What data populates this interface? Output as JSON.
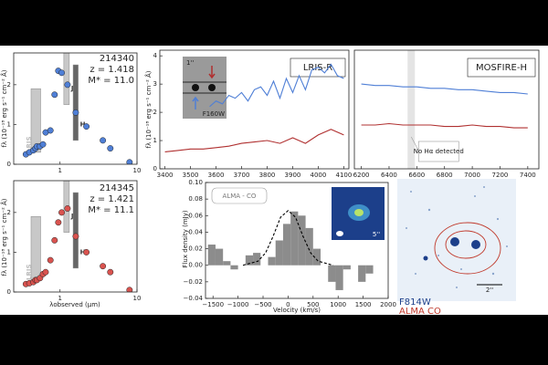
{
  "chart_data": [
    {
      "type": "scatter",
      "texts": [
        "214340",
        "z = 1.418",
        "M* = 11.0"
      ],
      "ylabel": "fλ (10⁻¹⁸ erg s⁻¹ cm⁻² Å)",
      "xscale": "log",
      "xlim": [
        0.25,
        10
      ],
      "xticks": [
        1,
        10
      ],
      "ylim": [
        0,
        2.8
      ],
      "yticks": [
        0,
        1,
        2
      ],
      "color": "#4f7fd6",
      "bands": [
        {
          "name": "LRIS",
          "xrange": [
            0.42,
            0.56
          ]
        },
        {
          "name": "J",
          "xrange": [
            1.12,
            1.32
          ]
        },
        {
          "name": "H",
          "xrange": [
            1.48,
            1.72
          ]
        }
      ],
      "x": [
        0.36,
        0.4,
        0.45,
        0.48,
        0.5,
        0.55,
        0.6,
        0.65,
        0.75,
        0.85,
        0.95,
        1.05,
        1.25,
        1.6,
        2.2,
        3.6,
        4.5,
        8
      ],
      "values": [
        0.25,
        0.3,
        0.35,
        0.4,
        0.45,
        0.45,
        0.5,
        0.8,
        0.85,
        1.75,
        2.35,
        2.3,
        2.0,
        1.3,
        0.95,
        0.6,
        0.4,
        0.05
      ]
    },
    {
      "type": "scatter",
      "texts": [
        "214345",
        "z = 1.421",
        "M* = 11.1"
      ],
      "ylabel": "fλ (10⁻¹⁸ erg s⁻¹ cm⁻² Å)",
      "xlabel": "λobserved (μm)",
      "xscale": "log",
      "xlim": [
        0.25,
        10
      ],
      "xticks": [
        1,
        10
      ],
      "ylim": [
        0,
        2.8
      ],
      "yticks": [
        0,
        1,
        2
      ],
      "color": "#d9534f",
      "bands": [
        {
          "name": "LRIS",
          "xrange": [
            0.42,
            0.56
          ]
        },
        {
          "name": "J",
          "xrange": [
            1.12,
            1.32
          ]
        },
        {
          "name": "H",
          "xrange": [
            1.48,
            1.72
          ]
        }
      ],
      "x": [
        0.36,
        0.4,
        0.45,
        0.48,
        0.5,
        0.55,
        0.6,
        0.65,
        0.75,
        0.85,
        0.95,
        1.05,
        1.25,
        1.6,
        2.2,
        3.6,
        4.5,
        8
      ],
      "values": [
        0.2,
        0.22,
        0.25,
        0.3,
        0.3,
        0.35,
        0.45,
        0.5,
        0.8,
        1.3,
        1.75,
        2.0,
        2.1,
        1.4,
        1.0,
        0.65,
        0.5,
        0.05
      ]
    },
    {
      "type": "line",
      "label": "LRIS-R",
      "inset_texts": [
        "1''",
        "F160W"
      ],
      "ylabel": "fλ (10⁻¹⁸ erg s⁻¹ cm⁻² Å)",
      "xlim": [
        3380,
        4120
      ],
      "xticks": [
        3400,
        3500,
        3600,
        3700,
        3800,
        3900,
        4000,
        4100
      ],
      "ylim": [
        0,
        4.2
      ],
      "yticks": [
        0,
        1,
        2,
        3,
        4
      ],
      "series": [
        {
          "color": "#4f7fd6",
          "x": [
            3575,
            3600,
            3625,
            3650,
            3675,
            3700,
            3725,
            3750,
            3775,
            3800,
            3825,
            3850,
            3875,
            3900,
            3925,
            3950,
            3975,
            4000,
            4025,
            4050,
            4075,
            4100
          ],
          "values": [
            2.2,
            2.4,
            2.3,
            2.6,
            2.5,
            2.7,
            2.4,
            2.8,
            2.9,
            2.6,
            3.1,
            2.5,
            3.2,
            2.7,
            3.3,
            2.8,
            3.5,
            3.6,
            3.4,
            3.7,
            3.3,
            3.2
          ]
        },
        {
          "color": "#b03030",
          "x": [
            3400,
            3450,
            3500,
            3550,
            3600,
            3650,
            3700,
            3750,
            3800,
            3850,
            3900,
            3950,
            4000,
            4050,
            4100
          ],
          "values": [
            0.6,
            0.65,
            0.7,
            0.7,
            0.75,
            0.8,
            0.9,
            0.95,
            1.0,
            0.9,
            1.1,
            0.9,
            1.2,
            1.4,
            1.2
          ]
        }
      ]
    },
    {
      "type": "line",
      "label": "MOSFIRE-H",
      "annotation": "No Hα detected",
      "highlight_x": 6560,
      "xlim": [
        6150,
        7480
      ],
      "xticks": [
        6200,
        6400,
        6600,
        6800,
        7000,
        7200,
        7400
      ],
      "ylim": [
        0,
        4.2
      ],
      "series": [
        {
          "color": "#4f7fd6",
          "x": [
            6200,
            6300,
            6400,
            6500,
            6600,
            6700,
            6800,
            6900,
            7000,
            7100,
            7200,
            7300,
            7400
          ],
          "values": [
            3.0,
            2.95,
            2.95,
            2.9,
            2.9,
            2.85,
            2.85,
            2.8,
            2.8,
            2.75,
            2.7,
            2.7,
            2.65
          ]
        },
        {
          "color": "#b03030",
          "x": [
            6200,
            6300,
            6400,
            6500,
            6600,
            6700,
            6800,
            6900,
            7000,
            7100,
            7200,
            7300,
            7400
          ],
          "values": [
            1.55,
            1.55,
            1.6,
            1.55,
            1.55,
            1.55,
            1.5,
            1.5,
            1.55,
            1.5,
            1.5,
            1.45,
            1.45
          ]
        }
      ]
    },
    {
      "type": "histogram",
      "label": "ALMA - CO",
      "inset_text": "5''",
      "ylabel": "Flux density (mJy)",
      "xlabel": "Velocity (km/s)",
      "xlim": [
        -1650,
        2000
      ],
      "xticks": [
        {
          "value": -1500,
          "label": "−1500"
        },
        {
          "value": -1000,
          "label": "−1000"
        },
        {
          "value": -500,
          "label": "−500"
        },
        0,
        500,
        1000,
        1500,
        2000
      ],
      "ylim": [
        -0.04,
        0.1
      ],
      "yticks": [
        {
          "value": -0.04,
          "label": "−0.04"
        },
        {
          "value": -0.02,
          "label": "−0.02"
        },
        {
          "value": 0,
          "label": "0.00"
        },
        0.02,
        0.04,
        0.06,
        0.08,
        {
          "value": 0.1,
          "label": "0.10"
        }
      ],
      "color": "#8c8c8c",
      "bins": [
        -1600,
        -1450,
        -1300,
        -1150,
        -1000,
        -850,
        -700,
        -550,
        -400,
        -250,
        -100,
        50,
        200,
        350,
        500,
        650,
        800,
        950,
        1100,
        1250,
        1400,
        1550,
        1700,
        1850
      ],
      "values": [
        0.025,
        0.02,
        0.005,
        -0.005,
        0.0,
        0.012,
        0.015,
        0.0,
        0.01,
        0.03,
        0.05,
        0.065,
        0.06,
        0.045,
        0.02,
        0.0,
        -0.02,
        -0.03,
        -0.005,
        0.0,
        -0.02,
        -0.01,
        0.0
      ],
      "fit": {
        "x": [
          -900,
          -600,
          -450,
          -300,
          -150,
          0,
          150,
          300,
          450,
          600,
          900
        ],
        "values": [
          0,
          0.005,
          0.015,
          0.035,
          0.058,
          0.066,
          0.058,
          0.035,
          0.015,
          0.005,
          0
        ]
      }
    }
  ],
  "image_labels": [
    "F814W",
    "ALMA CO",
    "2''"
  ]
}
